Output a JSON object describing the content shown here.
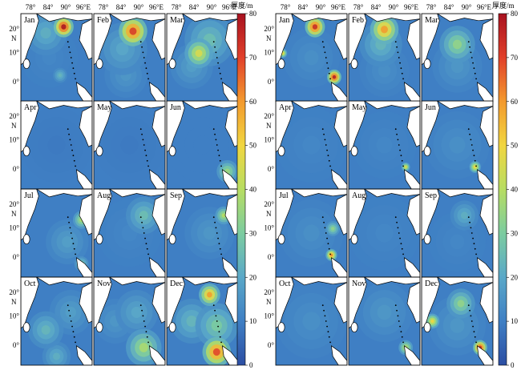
{
  "months": [
    "Jan",
    "Feb",
    "Mar",
    "Apr",
    "May",
    "Jun",
    "Jul",
    "Aug",
    "Sep",
    "Oct",
    "Nov",
    "Dec"
  ],
  "lon_ticks": [
    "78°",
    "84°",
    "90°",
    "96°E"
  ],
  "lat_ticks": [
    "20°",
    "10°",
    "0°"
  ],
  "lat_unit": "N",
  "colorbar": {
    "title": "厚度/m",
    "ticks": [
      "80",
      "70",
      "60",
      "50",
      "40",
      "30",
      "20",
      "10",
      "0"
    ],
    "min": 0,
    "max": 80,
    "palette": [
      "#2c4ea3",
      "#3f7fc4",
      "#5aa8c8",
      "#7ccca0",
      "#b7dd62",
      "#f1d640",
      "#f39a2e",
      "#e1402a",
      "#a81220"
    ]
  },
  "maps": [
    {
      "id": "left",
      "hotspots": {
        "Jan": [
          [
            0.6,
            0.15,
            0.14,
            80
          ],
          [
            0.35,
            0.22,
            0.3,
            22
          ],
          [
            0.55,
            0.7,
            0.1,
            24
          ],
          [
            0.4,
            0.5,
            0.4,
            12
          ]
        ],
        "Feb": [
          [
            0.55,
            0.2,
            0.2,
            72
          ],
          [
            0.4,
            0.4,
            0.35,
            20
          ],
          [
            0.45,
            0.7,
            0.3,
            16
          ]
        ],
        "Mar": [
          [
            0.45,
            0.45,
            0.2,
            46
          ],
          [
            0.6,
            0.3,
            0.35,
            26
          ],
          [
            0.35,
            0.6,
            0.3,
            18
          ]
        ],
        "Apr": [
          [
            0.5,
            0.5,
            0.5,
            9
          ]
        ],
        "May": [
          [
            0.5,
            0.5,
            0.5,
            9
          ]
        ],
        "Jun": [
          [
            0.85,
            0.8,
            0.15,
            36
          ],
          [
            0.5,
            0.5,
            0.5,
            10
          ]
        ],
        "Jul": [
          [
            0.85,
            0.35,
            0.12,
            38
          ],
          [
            0.65,
            0.6,
            0.3,
            18
          ],
          [
            0.85,
            0.85,
            0.1,
            30
          ]
        ],
        "Aug": [
          [
            0.7,
            0.3,
            0.25,
            26
          ],
          [
            0.5,
            0.5,
            0.45,
            12
          ]
        ],
        "Sep": [
          [
            0.8,
            0.3,
            0.12,
            40
          ],
          [
            0.6,
            0.5,
            0.35,
            16
          ]
        ],
        "Oct": [
          [
            0.35,
            0.6,
            0.25,
            24
          ],
          [
            0.7,
            0.4,
            0.3,
            18
          ],
          [
            0.5,
            0.9,
            0.2,
            22
          ]
        ],
        "Nov": [
          [
            0.7,
            0.8,
            0.25,
            38
          ],
          [
            0.3,
            0.5,
            0.3,
            16
          ],
          [
            0.6,
            0.4,
            0.3,
            20
          ]
        ],
        "Dec": [
          [
            0.6,
            0.2,
            0.15,
            60
          ],
          [
            0.7,
            0.85,
            0.2,
            70
          ],
          [
            0.35,
            0.5,
            0.3,
            24
          ],
          [
            0.7,
            0.55,
            0.3,
            30
          ]
        ]
      }
    },
    {
      "id": "right",
      "hotspots": {
        "Jan": [
          [
            0.55,
            0.15,
            0.14,
            75
          ],
          [
            0.82,
            0.72,
            0.1,
            78
          ],
          [
            0.1,
            0.45,
            0.06,
            50
          ],
          [
            0.5,
            0.5,
            0.4,
            14
          ]
        ],
        "Feb": [
          [
            0.5,
            0.18,
            0.2,
            60
          ],
          [
            0.45,
            0.35,
            0.3,
            24
          ],
          [
            0.5,
            0.65,
            0.35,
            14
          ]
        ],
        "Mar": [
          [
            0.5,
            0.35,
            0.25,
            34
          ],
          [
            0.5,
            0.6,
            0.35,
            16
          ]
        ],
        "Apr": [
          [
            0.5,
            0.5,
            0.5,
            12
          ]
        ],
        "May": [
          [
            0.8,
            0.75,
            0.06,
            48
          ],
          [
            0.5,
            0.5,
            0.45,
            12
          ]
        ],
        "Jun": [
          [
            0.75,
            0.75,
            0.08,
            50
          ],
          [
            0.5,
            0.5,
            0.45,
            14
          ]
        ],
        "Jul": [
          [
            0.78,
            0.75,
            0.08,
            62
          ],
          [
            0.8,
            0.45,
            0.1,
            34
          ],
          [
            0.5,
            0.5,
            0.45,
            14
          ]
        ],
        "Aug": [
          [
            0.5,
            0.5,
            0.5,
            12
          ]
        ],
        "Sep": [
          [
            0.6,
            0.3,
            0.2,
            22
          ],
          [
            0.5,
            0.6,
            0.4,
            12
          ]
        ],
        "Oct": [
          [
            0.5,
            0.5,
            0.5,
            14
          ]
        ],
        "Nov": [
          [
            0.8,
            0.8,
            0.1,
            42
          ],
          [
            0.5,
            0.4,
            0.4,
            16
          ]
        ],
        "Dec": [
          [
            0.55,
            0.3,
            0.2,
            34
          ],
          [
            0.82,
            0.8,
            0.1,
            76
          ],
          [
            0.15,
            0.5,
            0.1,
            50
          ],
          [
            0.5,
            0.55,
            0.4,
            16
          ]
        ]
      }
    }
  ]
}
